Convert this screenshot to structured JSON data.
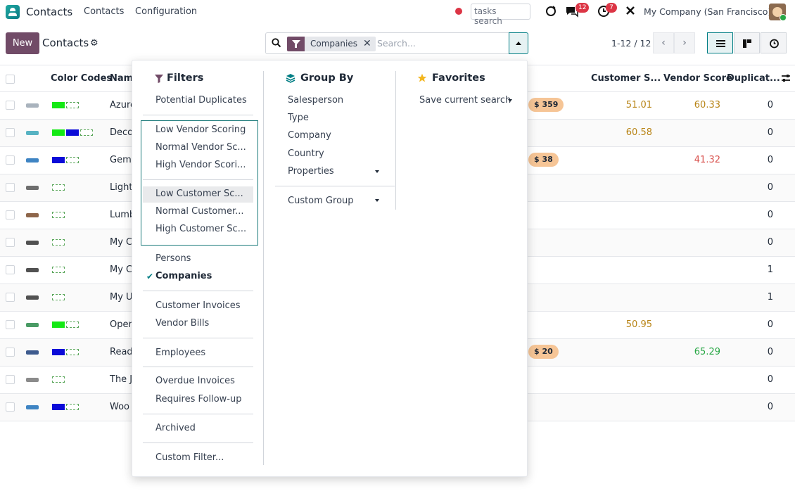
{
  "nav": {
    "app_name": "Contacts",
    "links": [
      "Contacts",
      "Configuration"
    ],
    "tasks_search": "tasks search",
    "messages_badge": "12",
    "activity_badge": "7",
    "company": "My Company (San Francisco)"
  },
  "control": {
    "new_label": "New",
    "title": "Contacts",
    "facet_value": "Companies",
    "search_placeholder": "Search...",
    "pager": "1-12 / 12"
  },
  "table": {
    "headers": {
      "color_codes": "Color Codes",
      "name": "Nam",
      "customer_score": "Customer S...",
      "vendor_score": "Vendor Score",
      "duplicates": "Duplicat..."
    },
    "rows": [
      {
        "name": "Azure",
        "swatches": [
          "green",
          "empty"
        ],
        "pill": "$ 359",
        "customer": "51.01",
        "customer_color": "amber",
        "vendor": "60.33",
        "vendor_color": "amber",
        "dup": "0"
      },
      {
        "name": "Deco",
        "swatches": [
          "green",
          "blue",
          "empty"
        ],
        "pill": "",
        "customer": "60.58",
        "customer_color": "amber",
        "vendor": "",
        "vendor_color": "",
        "dup": "0"
      },
      {
        "name": "Gemi",
        "swatches": [
          "blue",
          "empty"
        ],
        "pill": "$ 38",
        "customer": "",
        "customer_color": "",
        "vendor": "41.32",
        "vendor_color": "red",
        "dup": "0"
      },
      {
        "name": "Light",
        "swatches": [
          "empty"
        ],
        "pill": "",
        "customer": "",
        "customer_color": "",
        "vendor": "",
        "vendor_color": "",
        "dup": "0"
      },
      {
        "name": "Lumb",
        "swatches": [
          "empty"
        ],
        "pill": "",
        "customer": "",
        "customer_color": "",
        "vendor": "",
        "vendor_color": "",
        "dup": "0"
      },
      {
        "name": "My C",
        "swatches": [
          "empty"
        ],
        "pill": "",
        "customer": "",
        "customer_color": "",
        "vendor": "",
        "vendor_color": "",
        "dup": "0"
      },
      {
        "name": "My C",
        "swatches": [
          "empty"
        ],
        "pill": "",
        "customer": "",
        "customer_color": "",
        "vendor": "",
        "vendor_color": "",
        "dup": "1"
      },
      {
        "name": "My U",
        "swatches": [
          "empty"
        ],
        "pill": "",
        "customer": "",
        "customer_color": "",
        "vendor": "",
        "vendor_color": "",
        "dup": "1"
      },
      {
        "name": "Oper",
        "swatches": [
          "green",
          "empty"
        ],
        "pill": "",
        "customer": "50.95",
        "customer_color": "amber",
        "vendor": "",
        "vendor_color": "",
        "dup": "0"
      },
      {
        "name": "Read",
        "swatches": [
          "blue",
          "empty"
        ],
        "pill": "$ 20",
        "customer": "",
        "customer_color": "",
        "vendor": "65.29",
        "vendor_color": "green",
        "dup": "0"
      },
      {
        "name": "The J",
        "swatches": [
          "empty"
        ],
        "pill": "",
        "customer": "",
        "customer_color": "",
        "vendor": "",
        "vendor_color": "",
        "dup": "0"
      },
      {
        "name": "Woo",
        "swatches": [
          "blue",
          "empty"
        ],
        "pill": "",
        "customer": "",
        "customer_color": "",
        "vendor": "",
        "vendor_color": "",
        "dup": "0"
      }
    ]
  },
  "dropdown": {
    "filters_title": "Filters",
    "filters": {
      "potential_duplicates": "Potential Duplicates",
      "low_vendor": "Low Vendor Scoring",
      "normal_vendor": "Normal Vendor Sc...",
      "high_vendor": "High Vendor Scori...",
      "low_customer": "Low Customer Sc...",
      "normal_customer": "Normal Customer...",
      "high_customer": "High Customer Sc...",
      "persons": "Persons",
      "companies": "Companies",
      "customer_invoices": "Customer Invoices",
      "vendor_bills": "Vendor Bills",
      "employees": "Employees",
      "overdue_invoices": "Overdue Invoices",
      "requires_follow_up": "Requires Follow-up",
      "archived": "Archived",
      "custom_filter": "Custom Filter..."
    },
    "groupby_title": "Group By",
    "groupby": {
      "salesperson": "Salesperson",
      "type": "Type",
      "company": "Company",
      "country": "Country",
      "properties": "Properties",
      "custom_group": "Custom Group"
    },
    "favorites_title": "Favorites",
    "favorites": {
      "save_current_search": "Save current search"
    }
  }
}
